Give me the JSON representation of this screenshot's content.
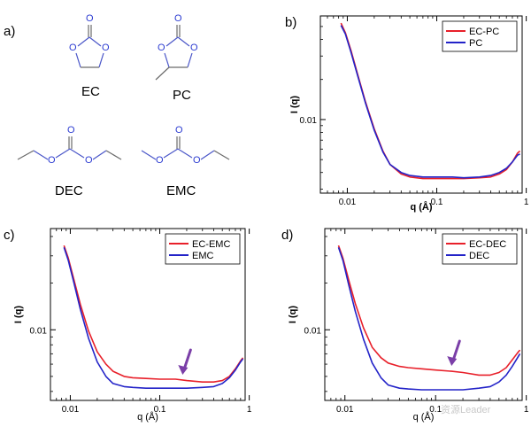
{
  "molecules": {
    "panel_letter": "a)",
    "items": [
      {
        "id": "ec",
        "label": "EC"
      },
      {
        "id": "pc",
        "label": "PC"
      },
      {
        "id": "dec",
        "label": "DEC"
      },
      {
        "id": "emc",
        "label": "EMC"
      }
    ],
    "oxygen_symbol": "O",
    "colors": {
      "bond": "#6a6a6a",
      "oxygen": "#2b3bd1",
      "ring_bond": "#4a56c8"
    }
  },
  "chart_data": [
    {
      "id": "b",
      "panel_letter": "b)",
      "type": "line",
      "xscale": "log",
      "yscale": "log",
      "xlim": [
        0.005,
        0.9
      ],
      "ylim": [
        0.0028,
        0.06
      ],
      "xticks": [
        {
          "value": 0.01,
          "label": "0.01"
        },
        {
          "value": 0.1,
          "label": "0.1"
        },
        {
          "value": 1,
          "label": "1"
        }
      ],
      "yticks": [
        {
          "value": 0.01,
          "label": "0.01"
        }
      ],
      "xlabel": "q (Å)",
      "ylabel": "I (q)",
      "xlabel_bold": true,
      "legend": "top-right",
      "series": [
        {
          "name": "EC-PC",
          "color": "#e8202a",
          "x": [
            0.0085,
            0.0095,
            0.011,
            0.013,
            0.016,
            0.02,
            0.025,
            0.03,
            0.04,
            0.05,
            0.07,
            0.1,
            0.15,
            0.2,
            0.3,
            0.4,
            0.5,
            0.6,
            0.7,
            0.8,
            0.85
          ],
          "y": [
            0.053,
            0.045,
            0.033,
            0.022,
            0.0135,
            0.0085,
            0.0058,
            0.0046,
            0.0039,
            0.0037,
            0.0036,
            0.0036,
            0.0036,
            0.0036,
            0.00365,
            0.0037,
            0.0039,
            0.0042,
            0.0048,
            0.0056,
            0.0058
          ]
        },
        {
          "name": "PC",
          "color": "#2323c8",
          "x": [
            0.0085,
            0.0095,
            0.011,
            0.013,
            0.016,
            0.02,
            0.025,
            0.03,
            0.04,
            0.05,
            0.07,
            0.1,
            0.15,
            0.2,
            0.3,
            0.4,
            0.5,
            0.6,
            0.7,
            0.8,
            0.85
          ],
          "y": [
            0.051,
            0.044,
            0.032,
            0.0215,
            0.0132,
            0.0083,
            0.0057,
            0.0046,
            0.004,
            0.0038,
            0.0037,
            0.0037,
            0.0037,
            0.00365,
            0.0037,
            0.0038,
            0.004,
            0.0043,
            0.0048,
            0.0054,
            0.0055
          ]
        }
      ]
    },
    {
      "id": "c",
      "panel_letter": "c)",
      "type": "line",
      "xscale": "log",
      "yscale": "log",
      "xlim": [
        0.006,
        0.9
      ],
      "ylim": [
        0.0035,
        0.045
      ],
      "xticks": [
        {
          "value": 0.01,
          "label": "0.01"
        },
        {
          "value": 0.1,
          "label": "0.1"
        },
        {
          "value": 1,
          "label": "1"
        }
      ],
      "yticks": [
        {
          "value": 0.01,
          "label": "0.01"
        }
      ],
      "xlabel": "q (Å)",
      "ylabel": "I (q)",
      "xlabel_bold": false,
      "legend": "top-right",
      "annotation_arrow_at_x": 0.18,
      "series": [
        {
          "name": "EC-EMC",
          "color": "#e8202a",
          "x": [
            0.0085,
            0.0095,
            0.011,
            0.013,
            0.016,
            0.02,
            0.025,
            0.03,
            0.04,
            0.05,
            0.07,
            0.1,
            0.15,
            0.2,
            0.3,
            0.4,
            0.5,
            0.6,
            0.7,
            0.8,
            0.85
          ],
          "y": [
            0.035,
            0.029,
            0.021,
            0.0145,
            0.0098,
            0.0072,
            0.006,
            0.0054,
            0.005,
            0.0049,
            0.00485,
            0.0048,
            0.0048,
            0.0047,
            0.0046,
            0.0046,
            0.0047,
            0.005,
            0.0056,
            0.0063,
            0.0066
          ]
        },
        {
          "name": "EMC",
          "color": "#2323c8",
          "x": [
            0.0085,
            0.0095,
            0.011,
            0.013,
            0.016,
            0.02,
            0.025,
            0.03,
            0.04,
            0.05,
            0.07,
            0.1,
            0.15,
            0.2,
            0.3,
            0.4,
            0.5,
            0.6,
            0.7,
            0.8,
            0.85
          ],
          "y": [
            0.034,
            0.028,
            0.02,
            0.0135,
            0.0088,
            0.0062,
            0.005,
            0.0045,
            0.0043,
            0.00425,
            0.0042,
            0.0042,
            0.0042,
            0.0042,
            0.00425,
            0.0043,
            0.0045,
            0.0049,
            0.0055,
            0.0062,
            0.0065
          ]
        }
      ]
    },
    {
      "id": "d",
      "panel_letter": "d)",
      "type": "line",
      "xscale": "log",
      "yscale": "log",
      "xlim": [
        0.006,
        0.9
      ],
      "ylim": [
        0.0035,
        0.045
      ],
      "xticks": [
        {
          "value": 0.01,
          "label": "0.01"
        },
        {
          "value": 0.1,
          "label": "0.1"
        },
        {
          "value": 1,
          "label": "1"
        }
      ],
      "yticks": [
        {
          "value": 0.01,
          "label": "0.01"
        }
      ],
      "xlabel": "q (Å)",
      "ylabel": "I (q)",
      "xlabel_bold": false,
      "legend": "top-right",
      "annotation_arrow_at_x": 0.15,
      "series": [
        {
          "name": "EC-DEC",
          "color": "#e8202a",
          "x": [
            0.0085,
            0.0095,
            0.011,
            0.013,
            0.016,
            0.02,
            0.025,
            0.03,
            0.04,
            0.05,
            0.07,
            0.1,
            0.15,
            0.2,
            0.3,
            0.4,
            0.5,
            0.6,
            0.7,
            0.8,
            0.85
          ],
          "y": [
            0.035,
            0.029,
            0.021,
            0.0148,
            0.0103,
            0.0077,
            0.0066,
            0.0061,
            0.0058,
            0.0057,
            0.0056,
            0.0055,
            0.0054,
            0.0053,
            0.0051,
            0.0051,
            0.0053,
            0.0057,
            0.0064,
            0.0071,
            0.0074
          ]
        },
        {
          "name": "DEC",
          "color": "#2323c8",
          "x": [
            0.0085,
            0.0095,
            0.011,
            0.013,
            0.016,
            0.02,
            0.025,
            0.03,
            0.04,
            0.05,
            0.07,
            0.1,
            0.15,
            0.2,
            0.3,
            0.4,
            0.5,
            0.6,
            0.7,
            0.8,
            0.85
          ],
          "y": [
            0.034,
            0.028,
            0.0195,
            0.0132,
            0.0087,
            0.0061,
            0.0049,
            0.0044,
            0.0042,
            0.00415,
            0.0041,
            0.0041,
            0.0041,
            0.0041,
            0.0042,
            0.0043,
            0.0046,
            0.0051,
            0.0058,
            0.0066,
            0.007
          ]
        }
      ]
    }
  ],
  "annotation_arrow_color": "#7b3fa8",
  "watermark": "资源Leader"
}
